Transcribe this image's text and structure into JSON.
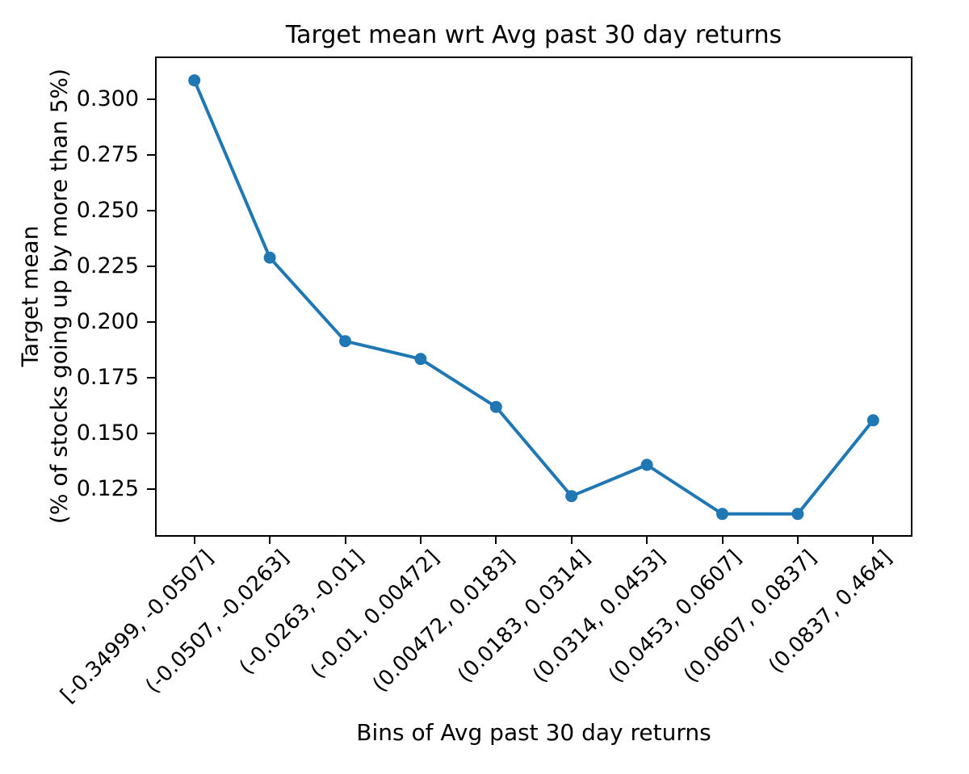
{
  "chart_data": {
    "type": "line",
    "title": "Target mean wrt Avg past 30 day returns",
    "xlabel": "Bins of Avg past 30 day returns",
    "ylabel": "Target mean\n(% of stocks going up by more than 5%)",
    "categories": [
      "[-0.34999, -0.0507]",
      "(-0.0507, -0.0263]",
      "(-0.0263, -0.01]",
      "(-0.01, 0.00472]",
      "(0.00472, 0.0183]",
      "(0.0183, 0.0314]",
      "(0.0314, 0.0453]",
      "(0.0453, 0.0607]",
      "(0.0607, 0.0837]",
      "(0.0837, 0.464]"
    ],
    "series": [
      {
        "name": "Target mean",
        "values": [
          0.3085,
          0.229,
          0.1915,
          0.1835,
          0.162,
          0.122,
          0.136,
          0.114,
          0.114,
          0.156
        ]
      }
    ],
    "yticks": [
      0.125,
      0.15,
      0.175,
      0.2,
      0.225,
      0.25,
      0.275,
      0.3
    ],
    "ytick_labels": [
      "0.125",
      "0.150",
      "0.175",
      "0.200",
      "0.225",
      "0.250",
      "0.275",
      "0.300"
    ],
    "ylim": [
      0.1045,
      0.3185
    ],
    "grid": false,
    "legend_position": "none",
    "marker": "o",
    "colors": {
      "line": "#1f77b4",
      "marker": "#1f77b4",
      "spine": "#000000",
      "text": "#000000",
      "background": "#ffffff"
    }
  }
}
